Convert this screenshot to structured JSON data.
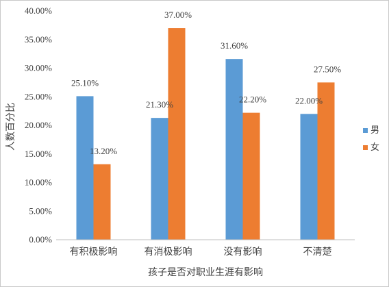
{
  "chart_data": {
    "type": "bar",
    "xlabel": "孩子是否对职业生涯有影响",
    "ylabel": "人数百分比",
    "categories": [
      "有积极影响",
      "有消极影响",
      "没有影响",
      "不清楚"
    ],
    "series": [
      {
        "name": "男",
        "color": "#5b9bd5",
        "values": [
          25.1,
          21.3,
          31.6,
          22.0
        ],
        "labels": [
          "25.10%",
          "21.30%",
          "31.60%",
          "22.00%"
        ]
      },
      {
        "name": "女",
        "color": "#ed7d31",
        "values": [
          13.2,
          37.0,
          22.2,
          27.5
        ],
        "labels": [
          "13.20%",
          "37.00%",
          "22.20%",
          "27.50%"
        ]
      }
    ],
    "ylim": [
      0,
      40
    ],
    "yticks": [
      0,
      5,
      10,
      15,
      20,
      25,
      30,
      35,
      40
    ],
    "ytick_labels": [
      "0.00%",
      "5.00%",
      "10.00%",
      "15.00%",
      "20.00%",
      "25.00%",
      "30.00%",
      "35.00%",
      "40.00%"
    ],
    "grid": false,
    "legend": "right"
  }
}
